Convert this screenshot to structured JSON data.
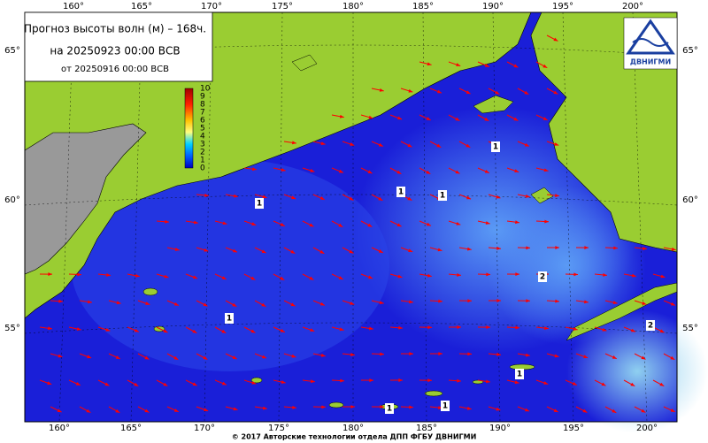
{
  "header": {
    "title": "Прогноз высоты волн (м) – 168ч.",
    "forecast_date": "на 20250923 00:00 ВСВ",
    "issue_date": "от 20250916 00:00 ВСВ"
  },
  "logo": {
    "text": "ДВНИГМИ"
  },
  "longitudes": [
    "160°",
    "165°",
    "170°",
    "175°",
    "180°",
    "185°",
    "190°",
    "195°",
    "200°"
  ],
  "latitudes": [
    "65°",
    "60°",
    "55°"
  ],
  "colorbar": {
    "labels": [
      "0",
      "1",
      "2",
      "3",
      "4",
      "5",
      "6",
      "7",
      "8",
      "9",
      "10"
    ]
  },
  "contour_labels": [
    "1",
    "1",
    "1",
    "1",
    "1",
    "2",
    "1",
    "1",
    "1",
    "2"
  ],
  "footer": "© 2017 Авторские технологии отдела ДПП ФГБУ ДВНИГМИ"
}
